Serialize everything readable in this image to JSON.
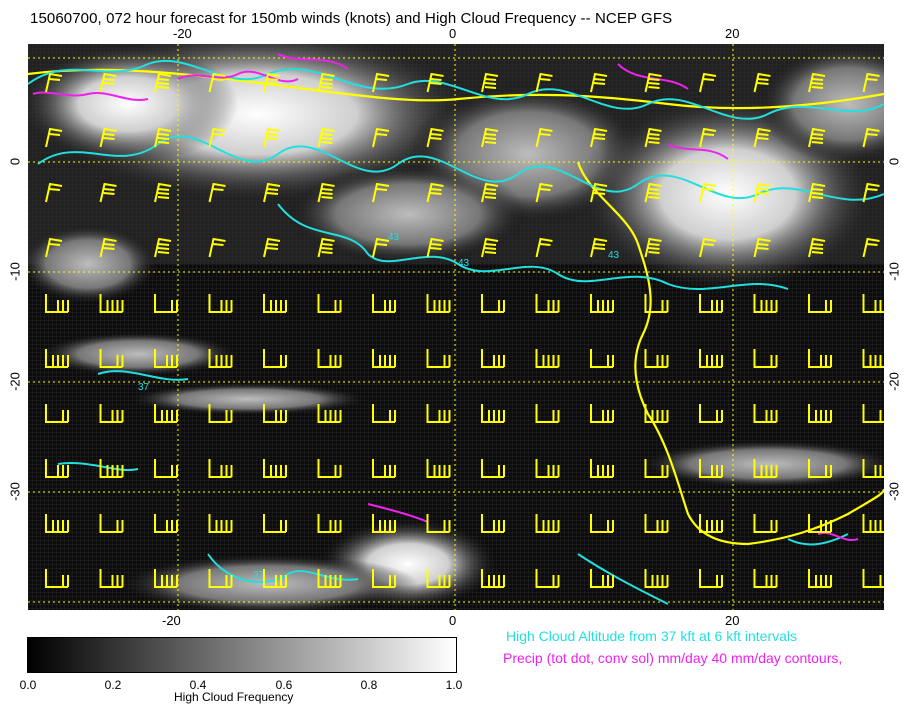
{
  "title": "15060700, 072 hour forecast for 150mb winds (knots) and High Cloud Frequency -- NCEP GFS",
  "axes": {
    "top_ticks": [
      "-20",
      "0",
      "20"
    ],
    "bottom_ticks": [
      "-20",
      "0",
      "20"
    ],
    "left_ticks": [
      "0",
      "-10",
      "-20",
      "-30"
    ],
    "right_ticks": [
      "0",
      "-10",
      "-20",
      "-30"
    ]
  },
  "colorbar": {
    "title": "High Cloud Frequency",
    "ticks": [
      "0.0",
      "0.2",
      "0.4",
      "0.6",
      "0.8",
      "1.0"
    ]
  },
  "legend": {
    "cloud_altitude": "High Cloud Altitude from 37 kft at 6 kft intervals",
    "precip": "Precip (tot dot, conv sol) mm/day 40 mm/day contours,"
  },
  "contour_labels": [
    "43",
    "43",
    "43",
    "37",
    "37"
  ],
  "colors": {
    "wind_barbs": "#ffff00",
    "cloud_contours": "#22dfe0",
    "precip_contours": "#ee22ee",
    "grid": "#ffff00",
    "coastline": "#ffff00"
  },
  "icons": {
    "barbs": "wind-barb-icon"
  }
}
